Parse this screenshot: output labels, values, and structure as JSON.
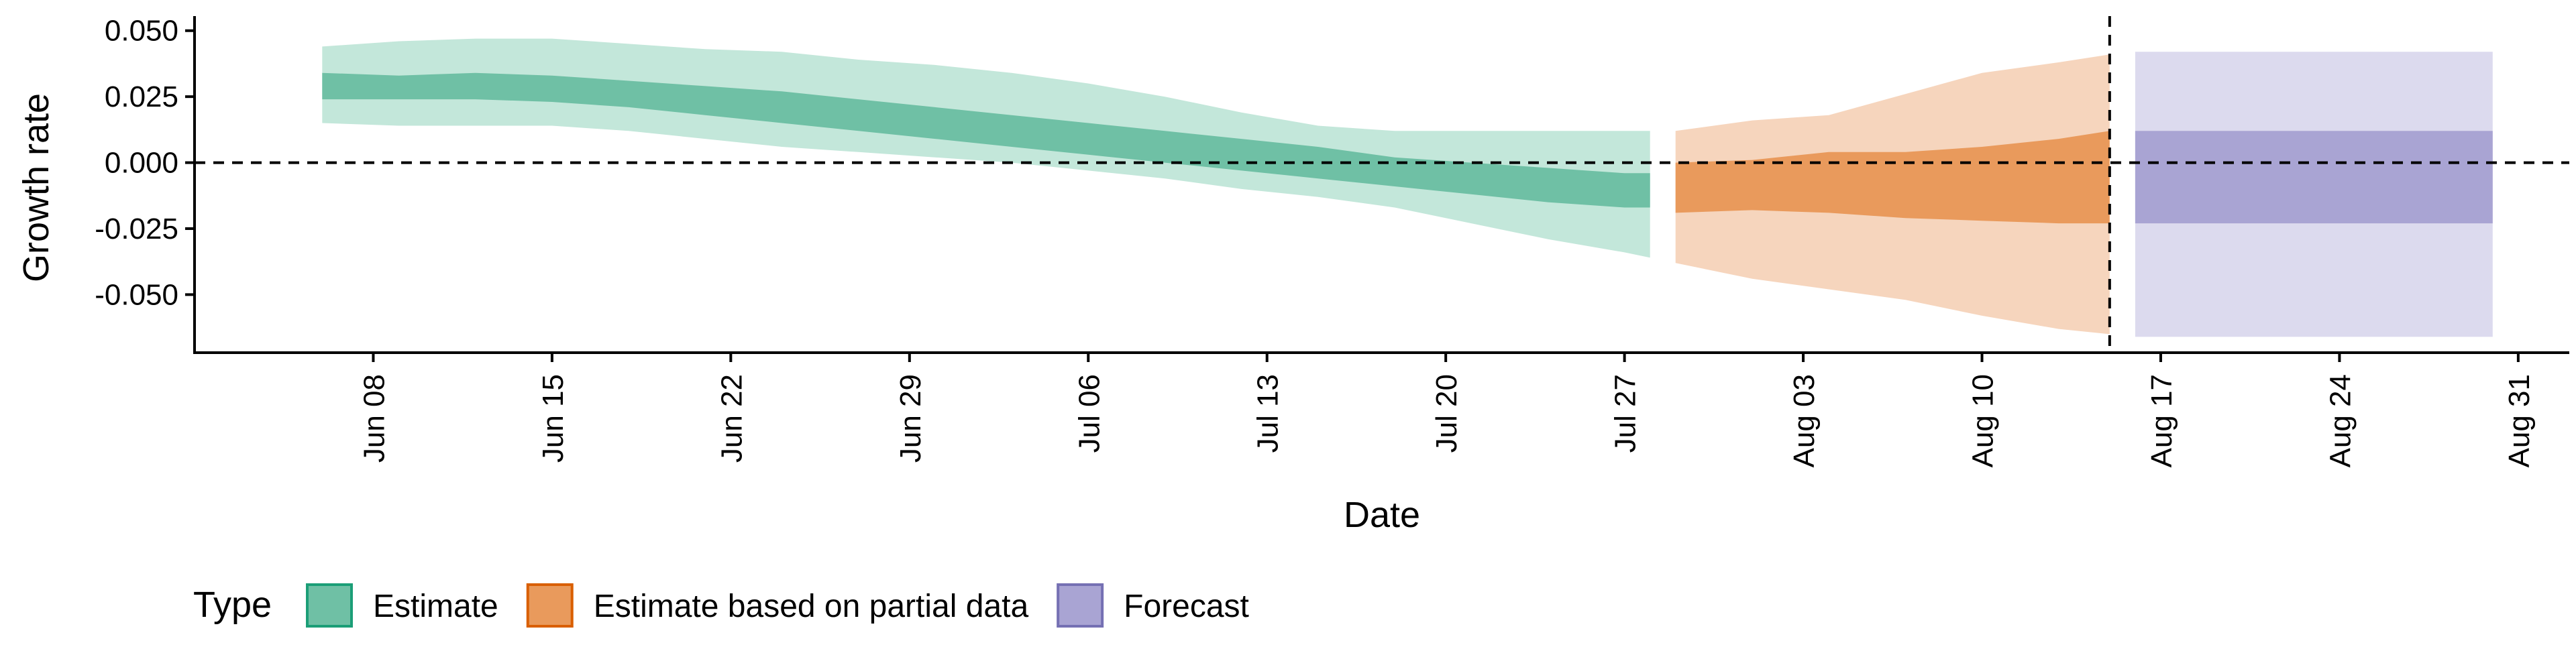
{
  "chart_data": {
    "type": "area",
    "xlabel": "Date",
    "ylabel": "Growth rate",
    "ylim": [
      -0.072,
      0.054
    ],
    "xlim": [
      "2020-06-01",
      "2020-09-02"
    ],
    "y_ticks": [
      -0.05,
      -0.025,
      0.0,
      0.025,
      0.05
    ],
    "y_tick_labels": [
      "-0.050",
      "-0.025",
      "0.000",
      "0.025",
      "0.050"
    ],
    "x_ticks": [
      "2020-06-08",
      "2020-06-15",
      "2020-06-22",
      "2020-06-29",
      "2020-07-06",
      "2020-07-13",
      "2020-07-20",
      "2020-07-27",
      "2020-08-03",
      "2020-08-10",
      "2020-08-17",
      "2020-08-24",
      "2020-08-31"
    ],
    "x_tick_labels": [
      "Jun 08",
      "Jun 15",
      "Jun 22",
      "Jun 29",
      "Jul 06",
      "Jul 13",
      "Jul 20",
      "Jul 27",
      "Aug 03",
      "Aug 10",
      "Aug 17",
      "Aug 24",
      "Aug 31"
    ],
    "reference_lines": {
      "horizontal_y": 0.0,
      "vertical_x": "2020-08-15"
    },
    "legend": {
      "title": "Type",
      "position": "bottom-left",
      "entries": [
        {
          "label": "Estimate",
          "fill": "#6fc0a5",
          "stroke": "#1b9e77"
        },
        {
          "label": "Estimate based on partial data",
          "fill": "#e99a5c",
          "stroke": "#d95f02"
        },
        {
          "label": "Forecast",
          "fill": "#a9a4d3",
          "stroke": "#7570b3"
        }
      ]
    },
    "series": [
      {
        "name": "Estimate",
        "color": "#1b9e77",
        "outer_color": "#c3e7da",
        "inner_color": "#6fc0a5",
        "x": [
          "2020-06-06",
          "2020-06-09",
          "2020-06-12",
          "2020-06-15",
          "2020-06-18",
          "2020-06-21",
          "2020-06-24",
          "2020-06-27",
          "2020-06-30",
          "2020-07-03",
          "2020-07-06",
          "2020-07-09",
          "2020-07-12",
          "2020-07-15",
          "2020-07-18",
          "2020-07-21",
          "2020-07-24",
          "2020-07-27",
          "2020-07-28"
        ],
        "outer_upper": [
          0.044,
          0.046,
          0.047,
          0.047,
          0.045,
          0.043,
          0.042,
          0.039,
          0.037,
          0.034,
          0.03,
          0.025,
          0.019,
          0.014,
          0.012,
          0.012,
          0.012,
          0.012,
          0.012
        ],
        "inner_upper": [
          0.034,
          0.033,
          0.034,
          0.033,
          0.031,
          0.029,
          0.027,
          0.024,
          0.021,
          0.018,
          0.015,
          0.012,
          0.009,
          0.006,
          0.002,
          0.0,
          -0.002,
          -0.004,
          -0.004
        ],
        "median": [
          0.029,
          0.028,
          0.029,
          0.028,
          0.026,
          0.024,
          0.021,
          0.018,
          0.015,
          0.012,
          0.009,
          0.006,
          0.003,
          0.0,
          -0.003,
          -0.006,
          -0.008,
          -0.01,
          -0.01
        ],
        "inner_lower": [
          0.024,
          0.024,
          0.024,
          0.023,
          0.021,
          0.018,
          0.015,
          0.012,
          0.009,
          0.006,
          0.003,
          0.0,
          -0.003,
          -0.006,
          -0.009,
          -0.012,
          -0.015,
          -0.017,
          -0.017
        ],
        "outer_lower": [
          0.015,
          0.014,
          0.014,
          0.014,
          0.012,
          0.009,
          0.006,
          0.004,
          0.002,
          0.0,
          -0.003,
          -0.006,
          -0.01,
          -0.013,
          -0.017,
          -0.023,
          -0.029,
          -0.034,
          -0.036
        ]
      },
      {
        "name": "Estimate based on partial data",
        "color": "#d95f02",
        "outer_color": "#f6d5bd",
        "inner_color": "#e99a5c",
        "x": [
          "2020-07-29",
          "2020-08-01",
          "2020-08-04",
          "2020-08-07",
          "2020-08-10",
          "2020-08-13",
          "2020-08-15"
        ],
        "outer_upper": [
          0.012,
          0.016,
          0.018,
          0.026,
          0.034,
          0.038,
          0.041
        ],
        "inner_upper": [
          0.0,
          0.001,
          0.004,
          0.004,
          0.006,
          0.009,
          0.012
        ],
        "median": [
          -0.006,
          -0.006,
          -0.006,
          -0.006,
          -0.006,
          -0.006,
          -0.006
        ],
        "inner_lower": [
          -0.019,
          -0.018,
          -0.019,
          -0.021,
          -0.022,
          -0.023,
          -0.023
        ],
        "outer_lower": [
          -0.038,
          -0.044,
          -0.048,
          -0.052,
          -0.058,
          -0.063,
          -0.065
        ]
      },
      {
        "name": "Forecast",
        "color": "#7570b3",
        "outer_color": "#dcdaee",
        "inner_color": "#a9a4d3",
        "x": [
          "2020-08-16",
          "2020-08-30"
        ],
        "outer_upper": [
          0.042,
          0.042
        ],
        "inner_upper": [
          0.012,
          0.012
        ],
        "median": [
          -0.006,
          -0.006
        ],
        "inner_lower": [
          -0.023,
          -0.023
        ],
        "outer_lower": [
          -0.066,
          -0.066
        ]
      }
    ]
  }
}
